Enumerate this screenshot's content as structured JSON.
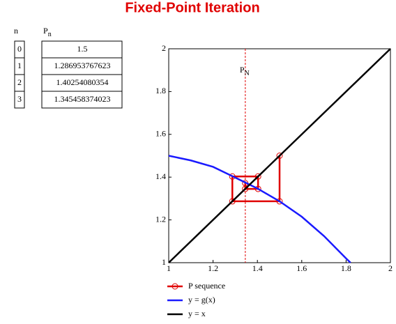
{
  "header": {
    "title": "Fixed-Point Iteration"
  },
  "table": {
    "n_header": "n",
    "p_header": {
      "text": "P",
      "subscript": "n"
    },
    "n": [
      "0",
      "1",
      "2",
      "3"
    ],
    "p": [
      "1.5",
      "1.286953767623",
      "1.40254080354",
      "1.345458374023"
    ]
  },
  "chart_data": {
    "type": "line",
    "xlim": [
      1,
      2
    ],
    "ylim": [
      1,
      2
    ],
    "xticks": [
      1,
      1.2,
      1.4,
      1.6,
      1.8,
      2
    ],
    "yticks": [
      1,
      1.2,
      1.4,
      1.6,
      1.8,
      2
    ],
    "vline": {
      "x": 1.345458374023,
      "color": "#e00000",
      "label": {
        "text": "P",
        "subscript": "N"
      }
    },
    "series": [
      {
        "name": "P sequence",
        "color": "#e00000",
        "markers": true,
        "x": [
          1.5,
          1.5,
          1.287,
          1.287,
          1.403,
          1.403,
          1.345,
          1.345
        ],
        "values": [
          1.5,
          1.287,
          1.287,
          1.403,
          1.403,
          1.345,
          1.345,
          1.372
        ]
      },
      {
        "name": "y = g(x)",
        "color": "#1a1aff",
        "markers": false,
        "x": [
          1,
          1.1,
          1.2,
          1.3,
          1.4,
          1.5,
          1.6,
          1.7,
          1.8,
          1.82
        ],
        "values": [
          1.5,
          1.478,
          1.448,
          1.398,
          1.347,
          1.287,
          1.215,
          1.125,
          1.02,
          1.0
        ]
      },
      {
        "name": "y = x",
        "color": "#000000",
        "markers": false,
        "x": [
          1,
          2
        ],
        "values": [
          1,
          2
        ]
      }
    ]
  }
}
